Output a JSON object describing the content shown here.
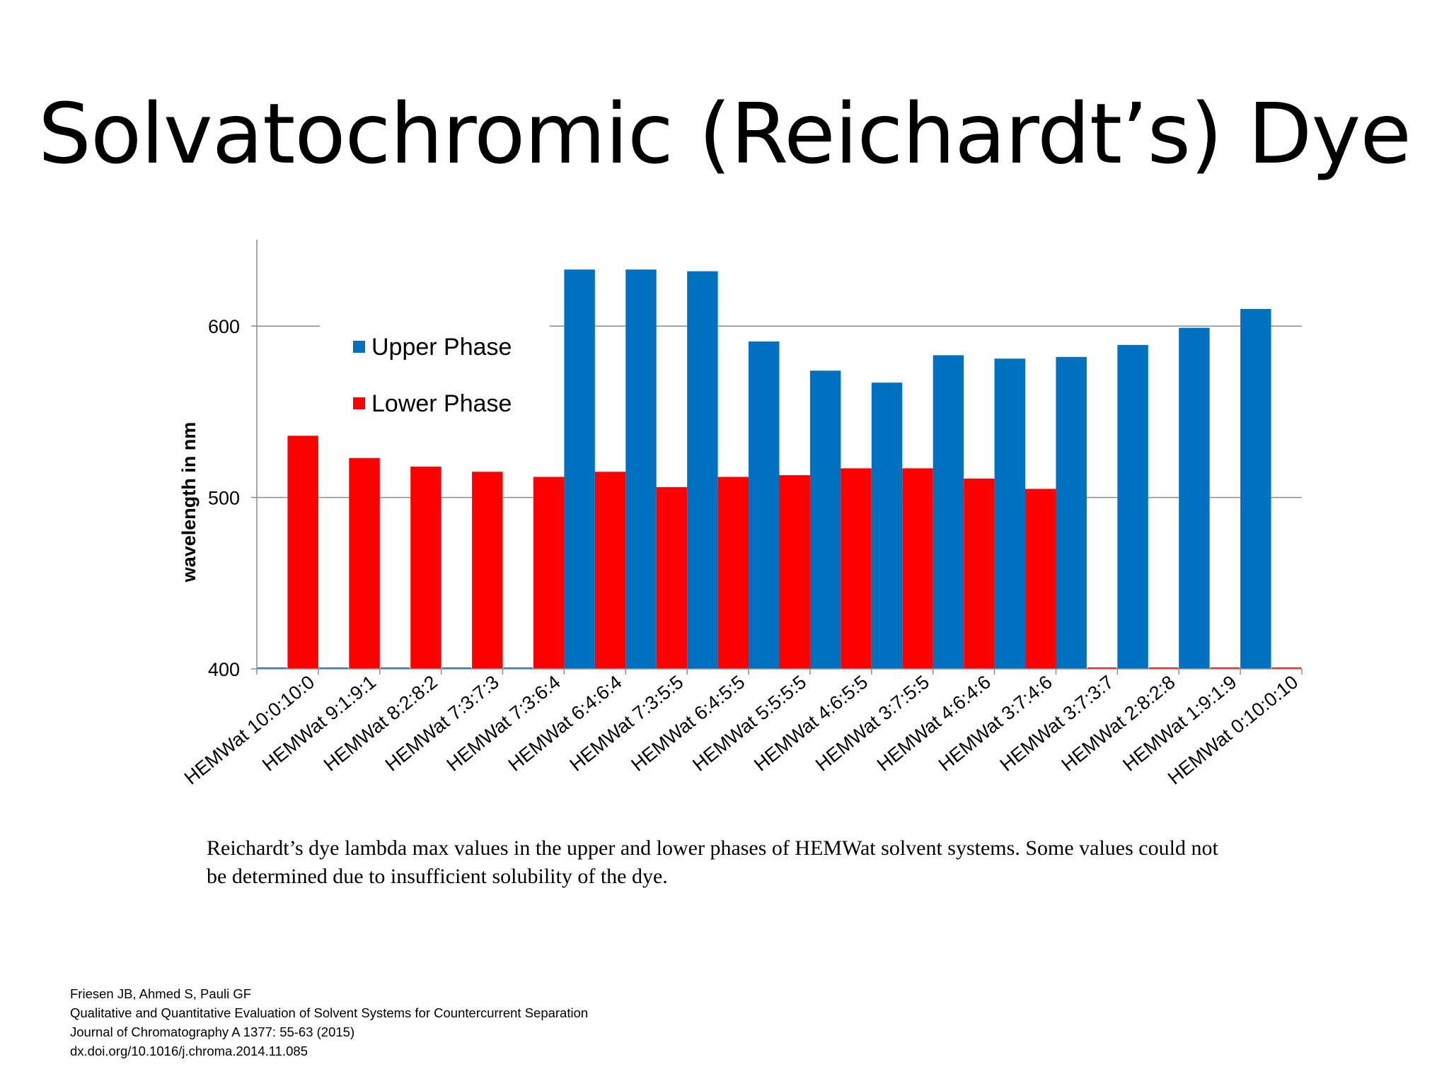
{
  "slide": {
    "title": "Solvatochromic (Reichardt’s) Dye",
    "caption": "Reichardt’s dye lambda max values in the upper and lower phases of HEMWat solvent systems. Some values could not be determined due to insufficient solubility of the dye.",
    "citation": {
      "authors": "Friesen JB, Ahmed S, Pauli GF",
      "paper_title": "Qualitative and Quantitative Evaluation of Solvent Systems for Countercurrent Separation",
      "journal": "Journal of Chromatography A 1377: 55-63 (2015)",
      "doi": "dx.doi.org/10.1016/j.chroma.2014.11.085"
    }
  },
  "chart_data": {
    "type": "bar",
    "title": "",
    "xlabel": "",
    "ylabel": "wavelength in nm",
    "ylim": [
      400,
      650
    ],
    "yticks": [
      400,
      500,
      600
    ],
    "grid": true,
    "legend_position": "top-left",
    "categories": [
      "HEMWat 10:0:10:0",
      "HEMWat 9:1:9:1",
      "HEMWat 8:2:8:2",
      "HEMWat 7:3:7:3",
      "HEMWat 7:3:6:4",
      "HEMWat 6:4:6:4",
      "HEMWat 7:3:5:5",
      "HEMWat 6:4:5:5",
      "HEMWat 5:5:5:5",
      "HEMWat 4:6:5:5",
      "HEMWat 3:7:5:5",
      "HEMWat 4:6:4:6",
      "HEMWat 3:7:4:6",
      "HEMWat 3:7:3:7",
      "HEMWat 2:8:2:8",
      "HEMWat 1:9:1:9",
      "HEMWat 0:10:0:10"
    ],
    "series": [
      {
        "name": "Upper Phase",
        "color": "#0070c0",
        "values": [
          null,
          null,
          null,
          null,
          null,
          633,
          633,
          632,
          591,
          574,
          567,
          583,
          581,
          582,
          589,
          599,
          610
        ]
      },
      {
        "name": "Lower Phase",
        "color": "#ff0000",
        "values": [
          536,
          523,
          518,
          515,
          512,
          515,
          506,
          512,
          513,
          517,
          517,
          511,
          505,
          null,
          null,
          null,
          null
        ]
      }
    ]
  }
}
